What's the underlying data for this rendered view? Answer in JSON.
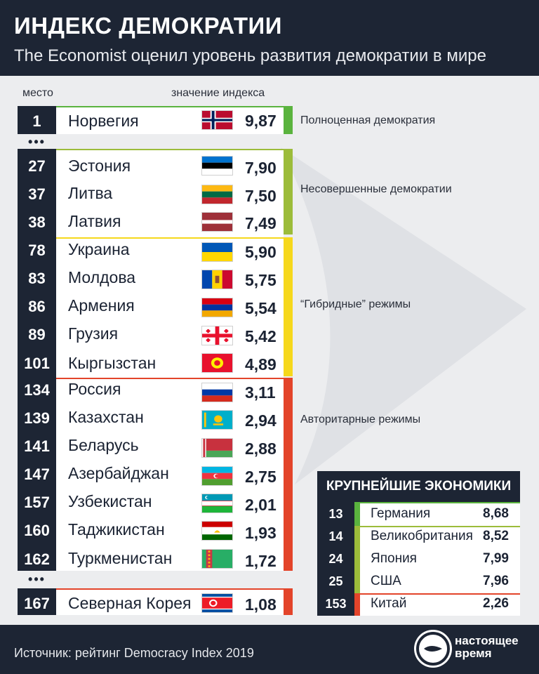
{
  "header": {
    "title": "ИНДЕКС ДЕМОКРАТИИ",
    "subtitle": "The Economist оценил уровень развития демократии в мире"
  },
  "columns": {
    "rank": "место",
    "value": "значение индекса"
  },
  "dots": "•••",
  "categories": [
    {
      "label": "Полноценная демократия",
      "color": "#5ab33e"
    },
    {
      "label": "Несовершенные демократии",
      "color": "#9cbc3a"
    },
    {
      "label": "“Гибридные” режимы",
      "color": "#f6d81c"
    },
    {
      "label": "Авторитарные режимы",
      "color": "#e3442a"
    }
  ],
  "rows": [
    {
      "rank": "1",
      "country": "Норвегия",
      "value": "9,87",
      "flag": "norway-flag"
    },
    {
      "rank": "27",
      "country": "Эстония",
      "value": "7,90",
      "flag": "estonia-flag"
    },
    {
      "rank": "37",
      "country": "Литва",
      "value": "7,50",
      "flag": "lithuania-flag"
    },
    {
      "rank": "38",
      "country": "Латвия",
      "value": "7,49",
      "flag": "latvia-flag"
    },
    {
      "rank": "78",
      "country": "Украина",
      "value": "5,90",
      "flag": "ukraine-flag"
    },
    {
      "rank": "83",
      "country": "Молдова",
      "value": "5,75",
      "flag": "moldova-flag"
    },
    {
      "rank": "86",
      "country": "Армения",
      "value": "5,54",
      "flag": "armenia-flag"
    },
    {
      "rank": "89",
      "country": "Грузия",
      "value": "5,42",
      "flag": "georgia-flag"
    },
    {
      "rank": "101",
      "country": "Кыргызстан",
      "value": "4,89",
      "flag": "kyrgyzstan-flag"
    },
    {
      "rank": "134",
      "country": "Россия",
      "value": "3,11",
      "flag": "russia-flag"
    },
    {
      "rank": "139",
      "country": "Казахстан",
      "value": "2,94",
      "flag": "kazakhstan-flag"
    },
    {
      "rank": "141",
      "country": "Беларусь",
      "value": "2,88",
      "flag": "belarus-flag"
    },
    {
      "rank": "147",
      "country": "Азербайджан",
      "value": "2,75",
      "flag": "azerbaijan-flag"
    },
    {
      "rank": "157",
      "country": "Узбекистан",
      "value": "2,01",
      "flag": "uzbekistan-flag"
    },
    {
      "rank": "160",
      "country": "Таджикистан",
      "value": "1,93",
      "flag": "tajikistan-flag"
    },
    {
      "rank": "162",
      "country": "Туркменистан",
      "value": "1,72",
      "flag": "turkmenistan-flag"
    },
    {
      "rank": "167",
      "country": "Северная Корея",
      "value": "1,08",
      "flag": "north-korea-flag"
    }
  ],
  "economies": {
    "title": "КРУПНЕЙШИЕ ЭКОНОМИКИ",
    "rows": [
      {
        "rank": "13",
        "country": "Германия",
        "value": "8,68"
      },
      {
        "rank": "14",
        "country": "Великобритания",
        "value": "8,52"
      },
      {
        "rank": "24",
        "country": "Япония",
        "value": "7,99"
      },
      {
        "rank": "25",
        "country": "США",
        "value": "7,96"
      },
      {
        "rank": "153",
        "country": "Китай",
        "value": "2,26"
      }
    ]
  },
  "footer": {
    "source": "Источник: рейтинг Democracy Index 2019",
    "logo_line1": "настоящее",
    "logo_line2": "время"
  }
}
